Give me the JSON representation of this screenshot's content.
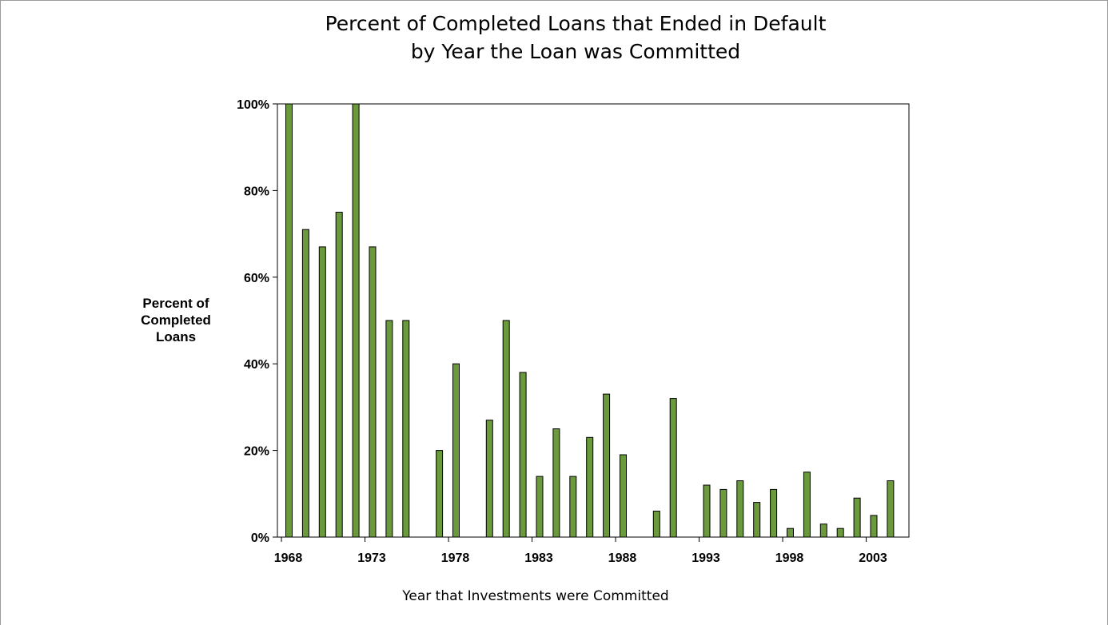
{
  "chart_data": {
    "type": "bar",
    "title": [
      "Percent of Completed Loans that Ended in Default",
      "by Year the Loan was Committed"
    ],
    "xlabel": "Year that Investments were Committed",
    "ylabel": [
      "Percent of",
      "Completed",
      "Loans"
    ],
    "ylim": [
      0,
      100
    ],
    "y_ticks": [
      "0%",
      "20%",
      "40%",
      "60%",
      "80%",
      "100%"
    ],
    "y_tick_values": [
      0,
      20,
      40,
      60,
      80,
      100
    ],
    "x_tick_labels": [
      "1968",
      "1973",
      "1978",
      "1983",
      "1988",
      "1993",
      "1998",
      "2003"
    ],
    "x_tick_values": [
      1968,
      1973,
      1978,
      1983,
      1988,
      1993,
      1998,
      2003
    ],
    "xlim": [
      1968,
      2005
    ],
    "bar_color": "#6a9a3c",
    "bar_edge_color": "#000000",
    "grid": false,
    "legend": "none",
    "categories": [
      1968,
      1969,
      1970,
      1971,
      1972,
      1973,
      1974,
      1975,
      1976,
      1977,
      1978,
      1979,
      1980,
      1981,
      1982,
      1983,
      1984,
      1985,
      1986,
      1987,
      1988,
      1989,
      1990,
      1991,
      1992,
      1993,
      1994,
      1995,
      1996,
      1997,
      1998,
      1999,
      2000,
      2001,
      2002,
      2003,
      2004
    ],
    "values": [
      100,
      71,
      67,
      75,
      100,
      67,
      50,
      50,
      0,
      20,
      40,
      0,
      27,
      50,
      38,
      14,
      25,
      14,
      23,
      33,
      19,
      0,
      6,
      32,
      0,
      12,
      11,
      13,
      8,
      11,
      2,
      15,
      3,
      2,
      9,
      5,
      13
    ]
  }
}
